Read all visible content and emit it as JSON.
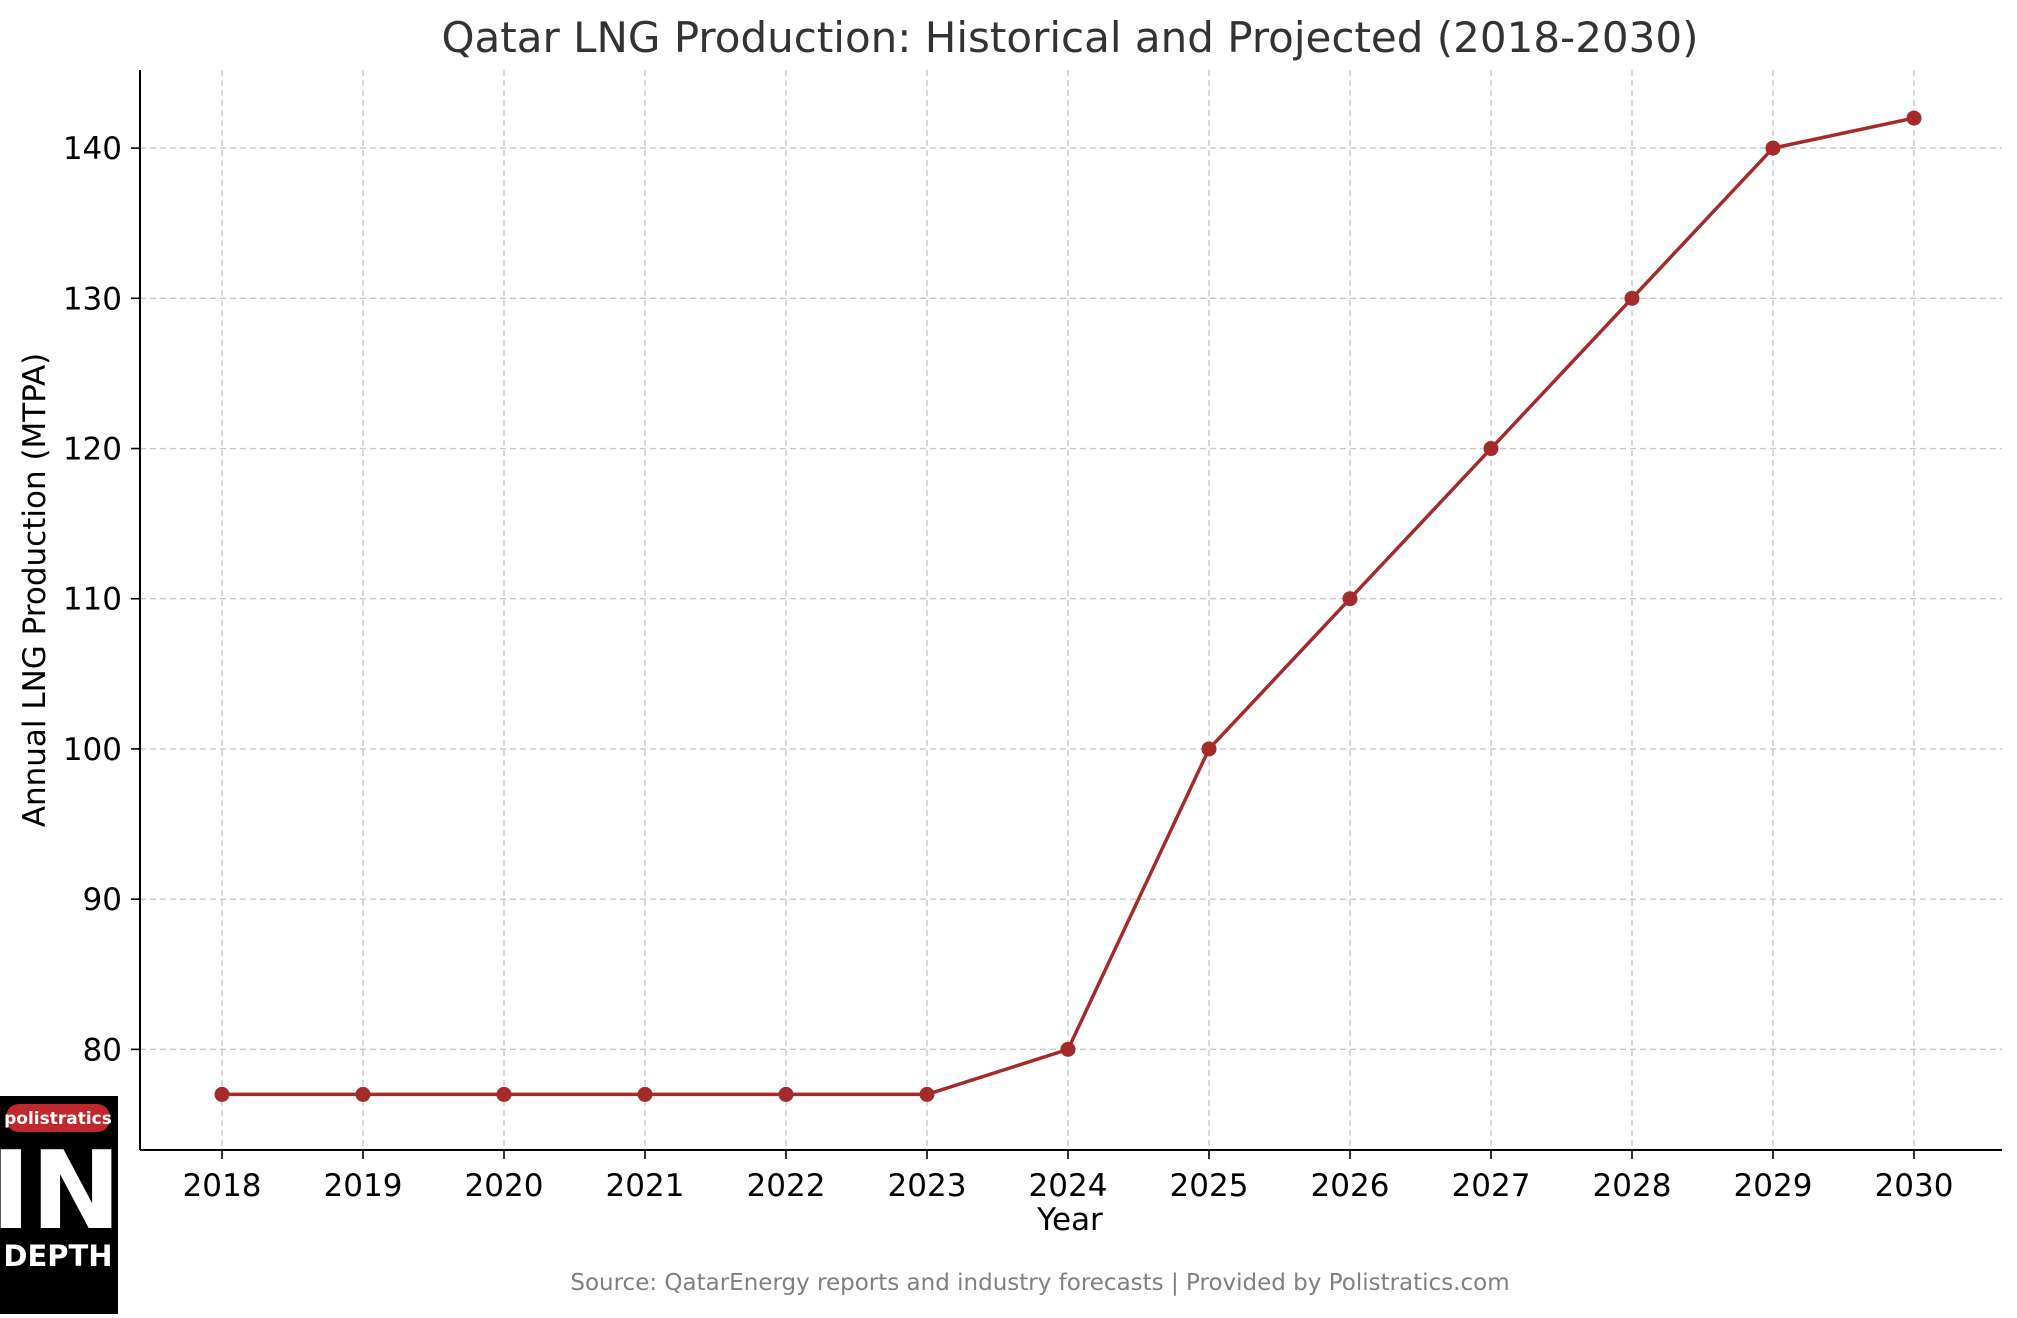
{
  "chart_data": {
    "type": "line",
    "title": "Qatar LNG Production: Historical and Projected (2018-2030)",
    "xlabel": "Year",
    "ylabel": "Annual LNG Production (MTPA)",
    "categories": [
      "2018",
      "2019",
      "2020",
      "2021",
      "2022",
      "2023",
      "2024",
      "2025",
      "2026",
      "2027",
      "2028",
      "2029",
      "2030"
    ],
    "series": [
      {
        "values": [
          77,
          77,
          77,
          77,
          77,
          77,
          80,
          100,
          110,
          120,
          130,
          140,
          142
        ],
        "color": "#A52A2A",
        "marker": "circle"
      }
    ],
    "ylim": [
      73.3,
      145.2
    ],
    "yticks": [
      80,
      90,
      100,
      110,
      120,
      130,
      140
    ],
    "grid": true,
    "grid_style": "dashed",
    "source": "Source: QatarEnergy reports and industry forecasts | Provided by Polistratics.com"
  },
  "logo": {
    "badge_text": "polistratics",
    "big_text": "IN",
    "small_text": "DEPTH",
    "background": "#000000",
    "badge_color": "#C0282D"
  },
  "colors": {
    "line": "#A52A2A",
    "axis": "#000000",
    "grid": "#c8c8c8",
    "title": "#333333",
    "source": "#808080"
  }
}
